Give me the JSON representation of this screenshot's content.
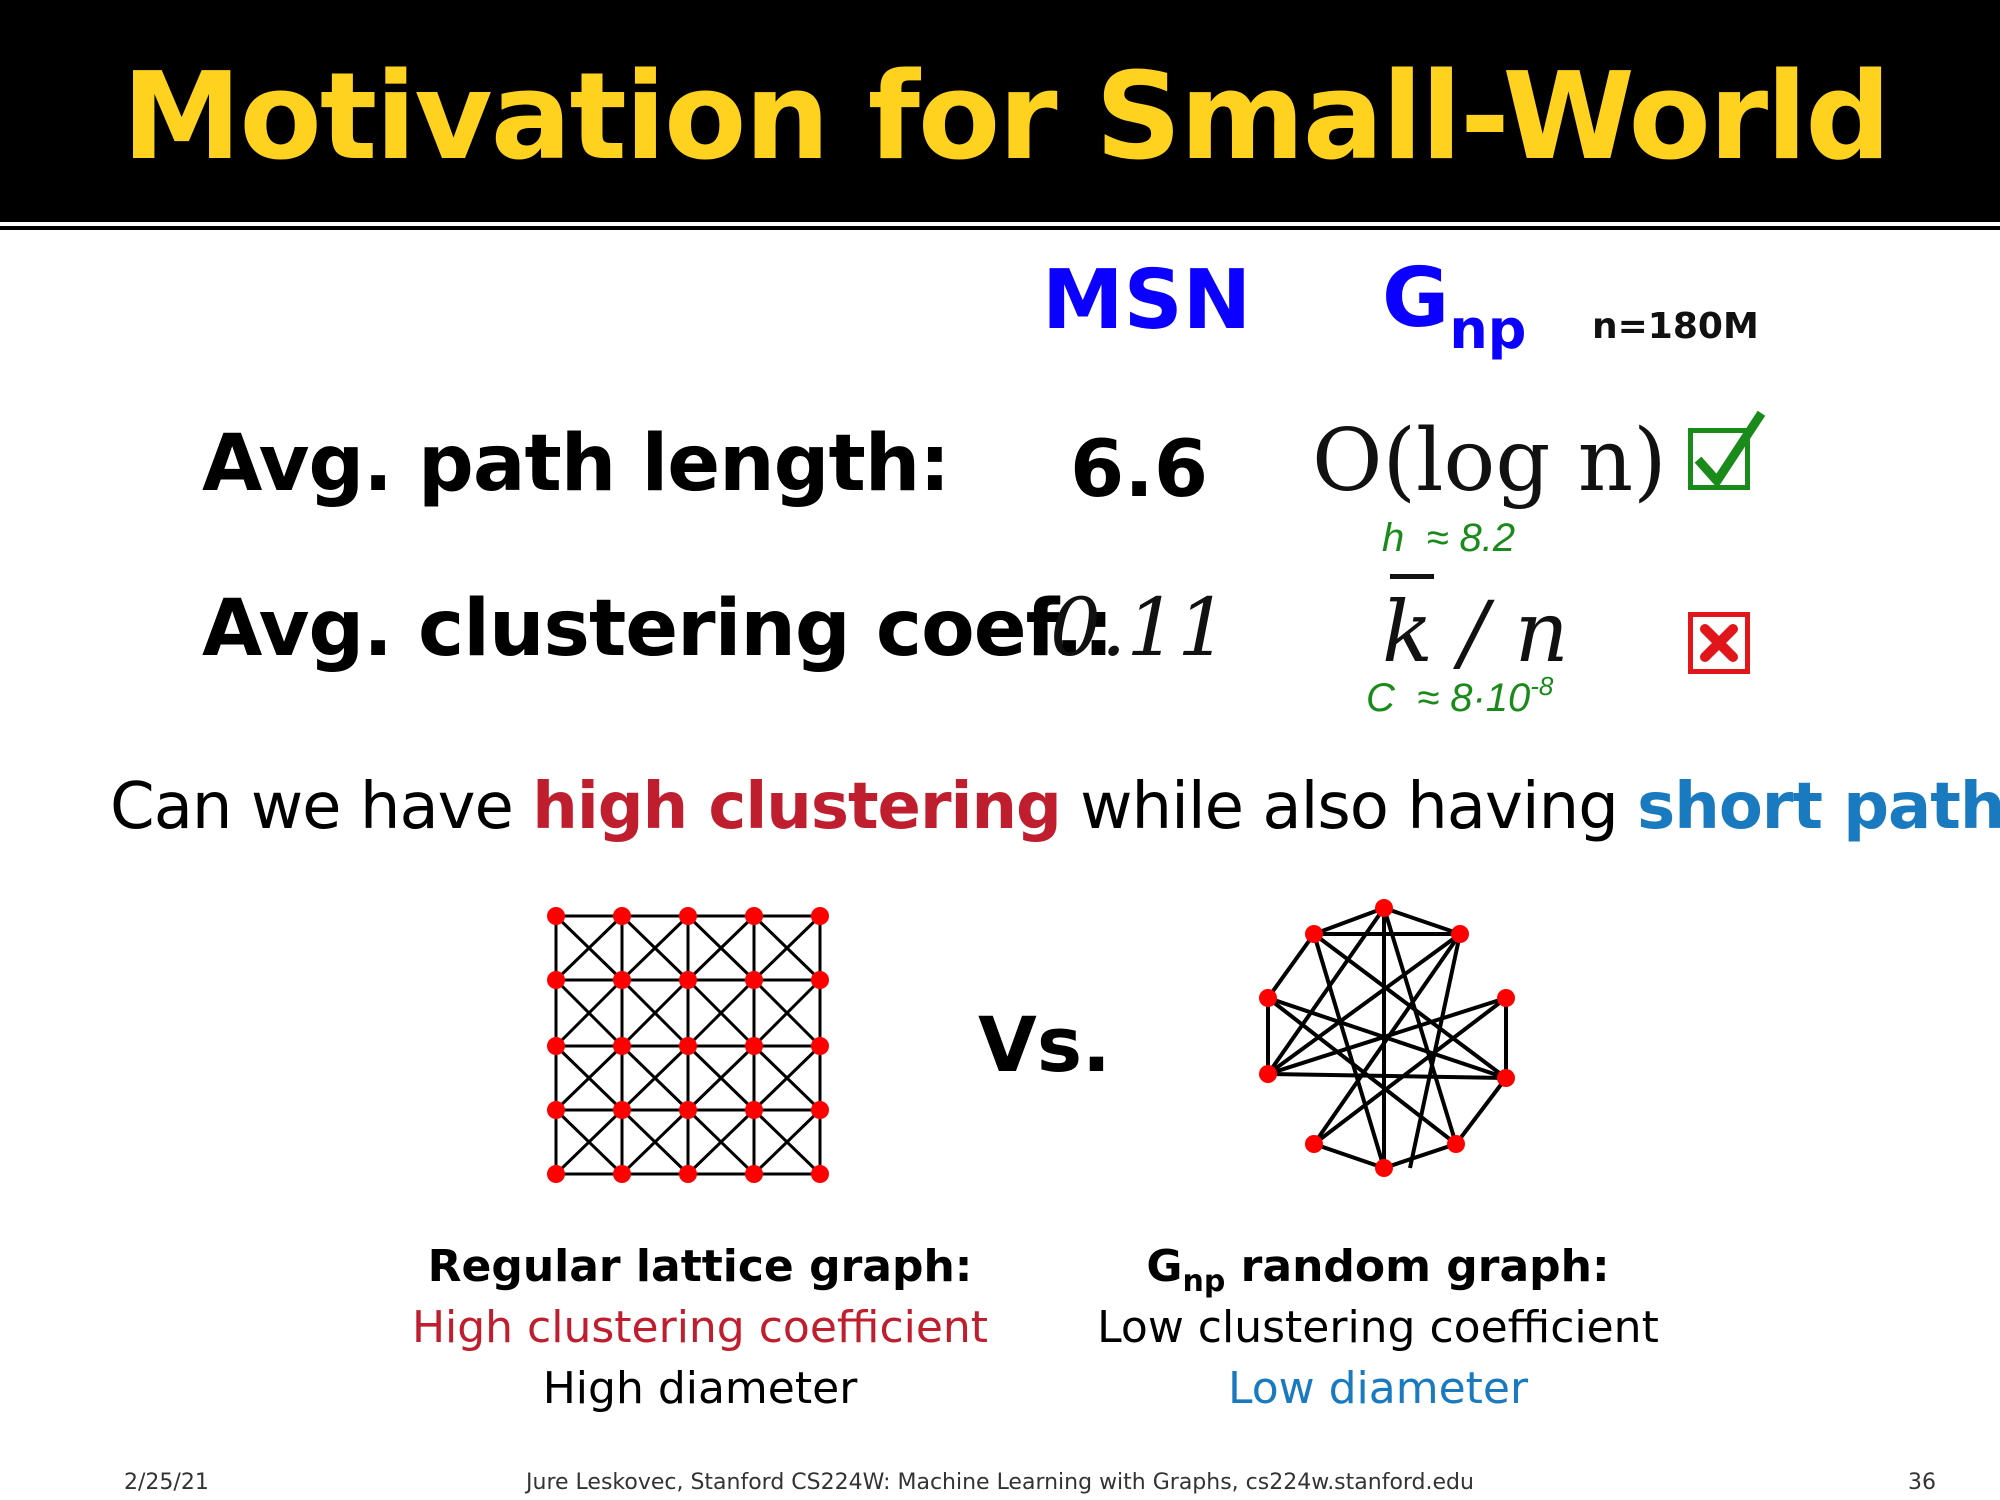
{
  "slide": {
    "title": "Motivation for Small-World"
  },
  "table": {
    "col_msn": "MSN",
    "col_gnp_main": "G",
    "col_gnp_sub": "np",
    "n_note": "n=180M",
    "row1_label": "Avg. path length:",
    "row1_msn": "6.6",
    "row1_gnp_formula": "O(log n)",
    "row1_note_var": "h",
    "row1_note_val": "≈ 8.2",
    "row2_label": "Avg. clustering coef.:",
    "row2_msn": "0.11",
    "row2_gnp_formula": "k / n",
    "row2_note_var": "C",
    "row2_note_val": "≈ 8·10",
    "row2_note_exp": "-8",
    "check_icon": "check-icon",
    "cross_icon": "cross-icon"
  },
  "question": {
    "prefix": "Can we have ",
    "red": "high clustering",
    "middle": " while also having ",
    "blue": "short paths",
    "suffix": "?"
  },
  "vs_label": "Vs.",
  "lattice": {
    "caption_title": "Regular lattice graph:",
    "caption_line1": "High clustering coefficient",
    "caption_line2": "High diameter"
  },
  "random": {
    "caption_title_main": "G",
    "caption_title_sub": "np",
    "caption_title_rest": " random graph:",
    "caption_line1": "Low clustering coefficient",
    "caption_line2": "Low diameter"
  },
  "footer": {
    "date": "2/25/21",
    "credit": "Jure Leskovec, Stanford CS224W: Machine Learning with Graphs, cs224w.stanford.edu",
    "page": "36"
  },
  "colors": {
    "title": "#FFD21F",
    "header_blue": "#0B00FF",
    "red": "#BF1E2E",
    "blue": "#1A7ABF",
    "green": "#1a8a1a",
    "node": "#FF0000"
  }
}
